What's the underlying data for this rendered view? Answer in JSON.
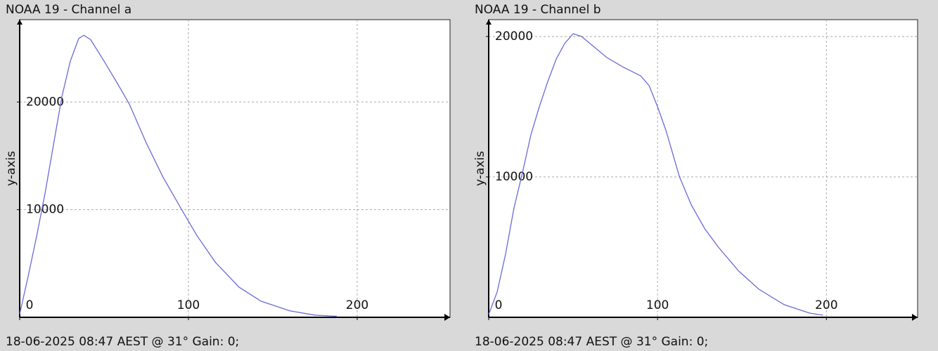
{
  "chart_data": [
    {
      "type": "line",
      "title": "NOAA 19 - Channel a",
      "ylabel": "y-axis",
      "footer": "18-06-2025 08:47 AEST @ 31° Gain: 0;",
      "color": "#6a6ad8",
      "grid": true,
      "x": [
        0,
        5,
        10,
        15,
        20,
        25,
        30,
        35,
        38,
        42,
        50,
        58,
        65,
        75,
        85,
        96,
        105,
        116,
        130,
        143,
        160,
        175,
        188
      ],
      "values": [
        300,
        3800,
        7500,
        11500,
        16000,
        20500,
        23800,
        25900,
        26200,
        25800,
        23800,
        21700,
        19800,
        16200,
        13000,
        10000,
        7600,
        5100,
        2800,
        1500,
        600,
        200,
        100
      ],
      "xlim": [
        0,
        255
      ],
      "ylim": [
        0,
        27650
      ],
      "xticks": [
        0,
        100,
        200
      ],
      "yticks": [
        10000,
        20000
      ]
    },
    {
      "type": "line",
      "title": "NOAA 19 - Channel b",
      "ylabel": "y-axis",
      "footer": "18-06-2025 08:47 AEST @ 31° Gain: 0;",
      "color": "#6a6ad8",
      "grid": true,
      "x": [
        0,
        5,
        10,
        15,
        20,
        25,
        30,
        35,
        40,
        45,
        50,
        55,
        60,
        70,
        80,
        90,
        95,
        100,
        105,
        113,
        120,
        128,
        136,
        148,
        160,
        175,
        190,
        198
      ],
      "values": [
        200,
        1800,
        4500,
        7800,
        10300,
        13000,
        15000,
        16800,
        18400,
        19500,
        20200,
        20000,
        19500,
        18500,
        17800,
        17200,
        16500,
        15000,
        13300,
        10000,
        8000,
        6300,
        5000,
        3300,
        2000,
        900,
        300,
        150
      ],
      "xlim": [
        0,
        254
      ],
      "ylim": [
        0,
        21200
      ],
      "xticks": [
        0,
        100,
        200
      ],
      "yticks": [
        10000,
        20000
      ]
    }
  ]
}
